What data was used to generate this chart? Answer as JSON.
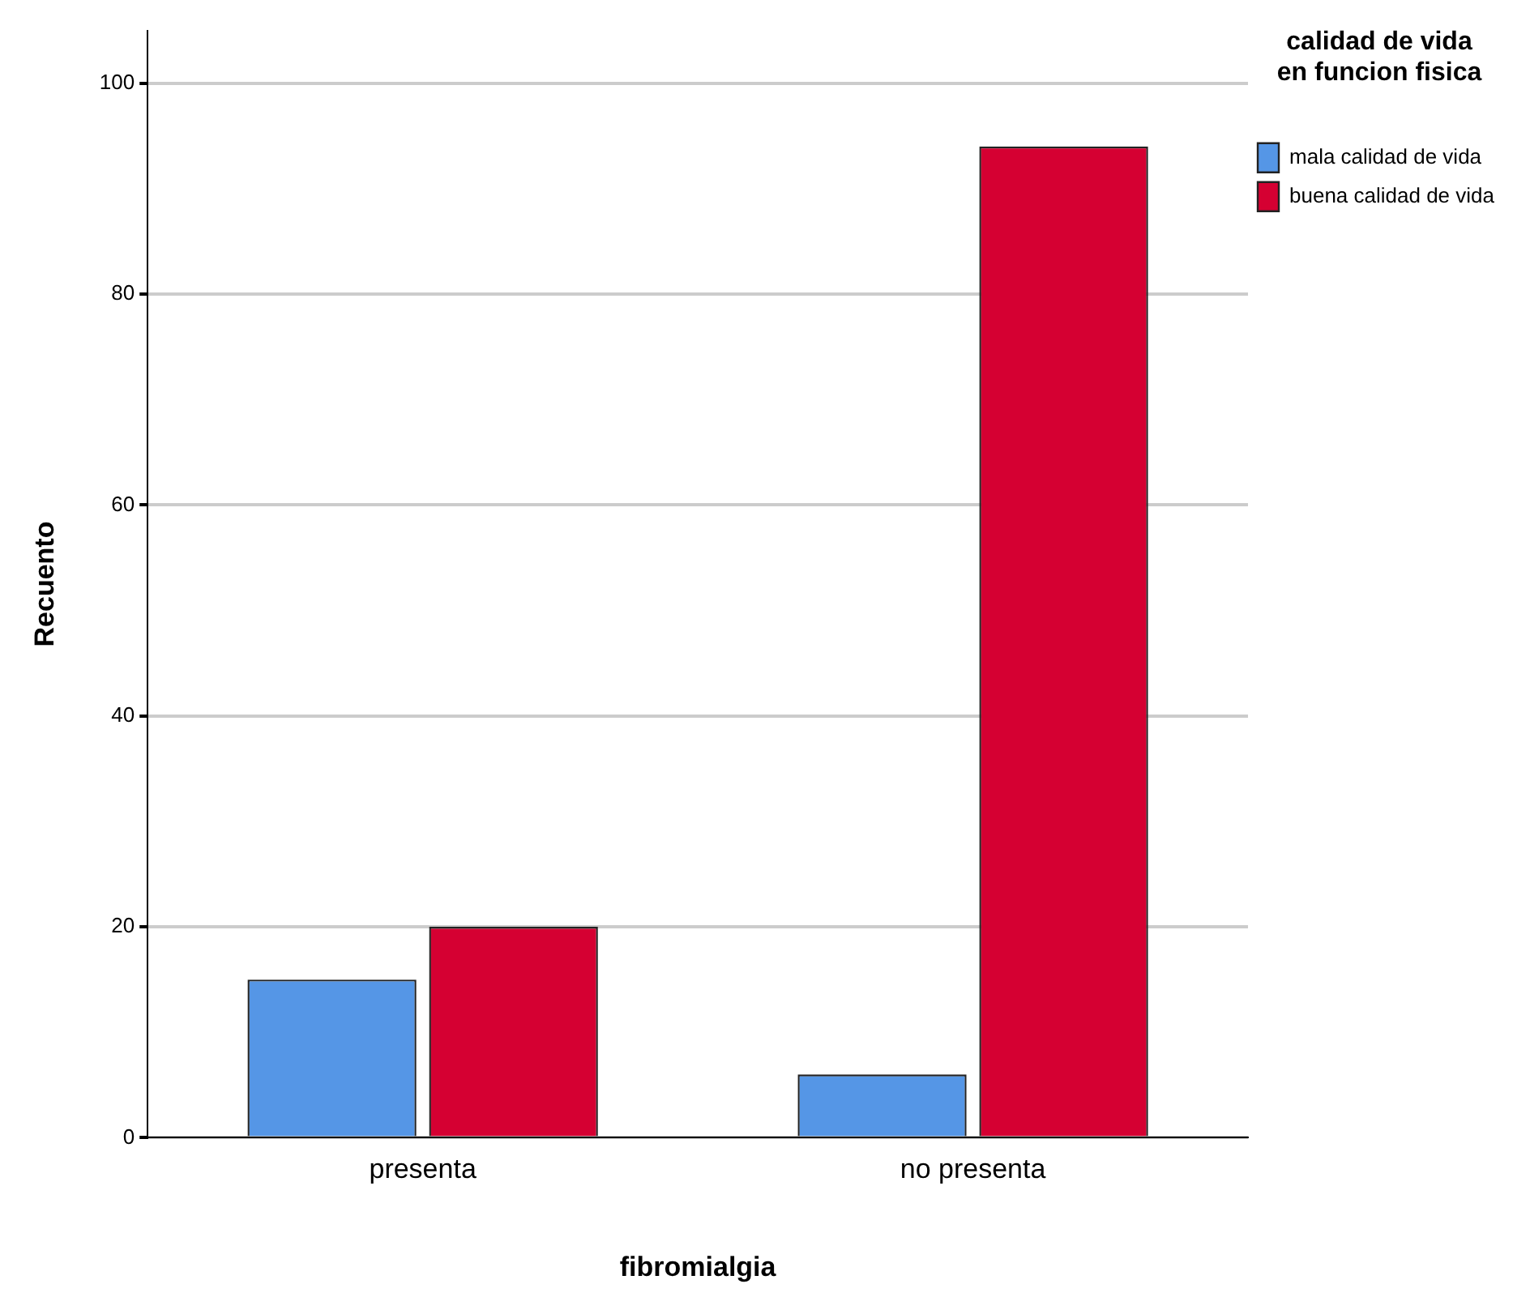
{
  "chart_data": {
    "type": "bar",
    "xlabel": "fibromialgia",
    "ylabel": "Recuento",
    "legend_title": "calidad de vida\nen funcion fisica",
    "categories": [
      "presenta",
      "no presenta"
    ],
    "series": [
      {
        "name": "mala calidad de vida",
        "color": "#5596e6",
        "values": [
          15,
          6
        ]
      },
      {
        "name": "buena calidad de vida",
        "color": "#d50032",
        "values": [
          20,
          94
        ]
      }
    ],
    "ylim": [
      0,
      105
    ],
    "yticks": [
      0,
      20,
      40,
      60,
      80,
      100
    ],
    "grid": "y",
    "legend": "top right"
  }
}
